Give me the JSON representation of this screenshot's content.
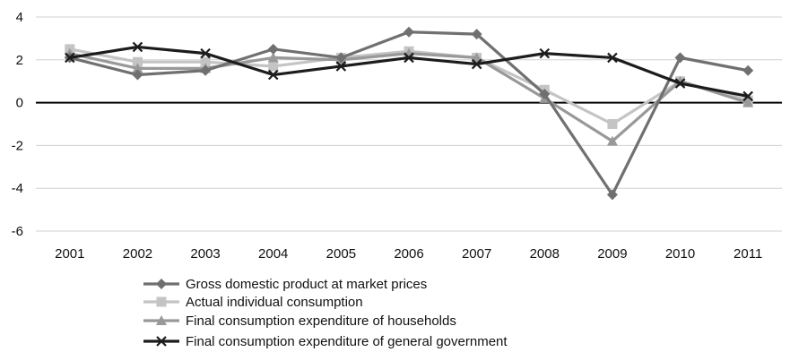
{
  "chart_data": {
    "type": "line",
    "x": [
      "2001",
      "2002",
      "2003",
      "2004",
      "2005",
      "2006",
      "2007",
      "2008",
      "2009",
      "2010",
      "2011"
    ],
    "ylim": [
      -6,
      4
    ],
    "yticks": [
      "4",
      "2",
      "0",
      "-2",
      "-4",
      "-6"
    ],
    "grid": true,
    "legend_position": "bottom",
    "series": [
      {
        "name": "Gross domestic product at market prices",
        "color": "#707070",
        "marker": "diamond",
        "values": [
          2.1,
          1.3,
          1.5,
          2.5,
          2.1,
          3.3,
          3.2,
          0.4,
          -4.3,
          2.1,
          1.5
        ]
      },
      {
        "name": "Actual individual consumption",
        "color": "#c4c4c4",
        "marker": "square",
        "values": [
          2.5,
          1.9,
          1.9,
          1.7,
          2.1,
          2.4,
          2.1,
          0.6,
          -1.0,
          1.0,
          0.1
        ]
      },
      {
        "name": "Final consumption expenditure of households",
        "color": "#999999",
        "marker": "triangle",
        "values": [
          2.3,
          1.6,
          1.6,
          2.1,
          2.0,
          2.3,
          2.1,
          0.2,
          -1.8,
          1.0,
          0.0
        ]
      },
      {
        "name": "Final consumption expenditure of general government",
        "color": "#1c1c1c",
        "marker": "x",
        "values": [
          2.1,
          2.6,
          2.3,
          1.3,
          1.7,
          2.1,
          1.8,
          2.3,
          2.1,
          0.9,
          0.3
        ]
      }
    ]
  }
}
